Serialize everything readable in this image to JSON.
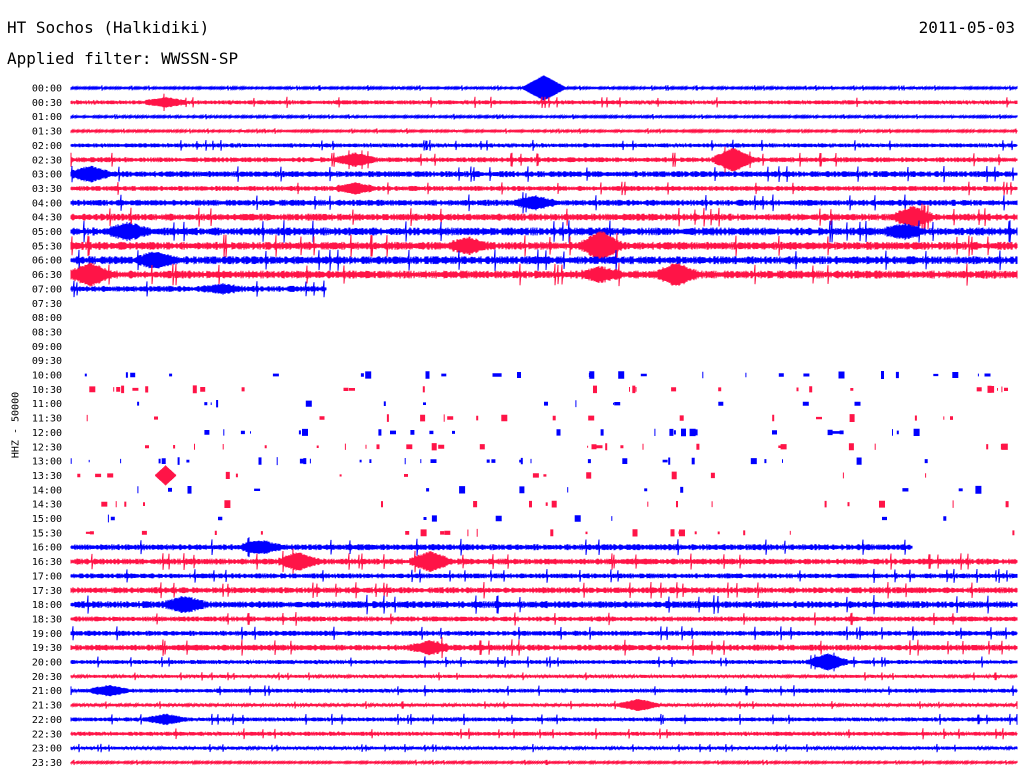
{
  "header": {
    "station": "HT Sochos (Halkidiki)",
    "date": "2011-05-03",
    "filter": "Applied filter: WWSSN-SP"
  },
  "chart_data": {
    "type": "line",
    "title": "HT Sochos (Halkidiki)",
    "ylabel": "HHZ - 50000",
    "colors": {
      "even_rows": "#0000ff",
      "odd_rows": "#ff1447"
    },
    "row_labels": [
      "00:00",
      "00:30",
      "01:00",
      "01:30",
      "02:00",
      "02:30",
      "03:00",
      "03:30",
      "04:00",
      "04:30",
      "05:00",
      "05:30",
      "06:00",
      "06:30",
      "07:00",
      "07:30",
      "08:00",
      "08:30",
      "09:00",
      "09:30",
      "10:00",
      "10:30",
      "11:00",
      "11:30",
      "12:00",
      "12:30",
      "13:00",
      "13:30",
      "14:00",
      "14:30",
      "15:00",
      "15:30",
      "16:00",
      "16:30",
      "17:00",
      "17:30",
      "18:00",
      "18:30",
      "19:00",
      "19:30",
      "20:00",
      "20:30",
      "21:00",
      "21:30",
      "22:00",
      "22:30",
      "23:00",
      "23:30"
    ],
    "series": [
      {
        "label": "00:00",
        "noise": 1,
        "coverage": 1,
        "events": [
          [
            0.5,
            12
          ]
        ]
      },
      {
        "label": "00:30",
        "noise": 2,
        "coverage": 1,
        "events": [
          [
            0.1,
            4
          ]
        ]
      },
      {
        "label": "01:00",
        "noise": 1,
        "coverage": 1,
        "events": []
      },
      {
        "label": "01:30",
        "noise": 1,
        "coverage": 1,
        "events": []
      },
      {
        "label": "02:00",
        "noise": 2,
        "coverage": 1,
        "events": []
      },
      {
        "label": "02:30",
        "noise": 2.5,
        "coverage": 1,
        "events": [
          [
            0.3,
            5
          ],
          [
            0.7,
            10
          ]
        ]
      },
      {
        "label": "03:00",
        "noise": 3,
        "coverage": 1,
        "events": [
          [
            0.02,
            6
          ]
        ]
      },
      {
        "label": "03:30",
        "noise": 2.5,
        "coverage": 1,
        "events": [
          [
            0.3,
            4
          ]
        ]
      },
      {
        "label": "04:00",
        "noise": 3,
        "coverage": 1,
        "events": [
          [
            0.49,
            5
          ]
        ]
      },
      {
        "label": "04:30",
        "noise": 3.5,
        "coverage": 1,
        "events": [
          [
            0.89,
            8
          ]
        ]
      },
      {
        "label": "05:00",
        "noise": 4,
        "coverage": 1,
        "events": [
          [
            0.06,
            6
          ],
          [
            0.88,
            5
          ]
        ]
      },
      {
        "label": "05:30",
        "noise": 4,
        "coverage": 1,
        "events": [
          [
            0.42,
            6
          ],
          [
            0.56,
            12
          ]
        ]
      },
      {
        "label": "06:00",
        "noise": 4,
        "coverage": 1,
        "events": [
          [
            0.09,
            6
          ]
        ]
      },
      {
        "label": "06:30",
        "noise": 4,
        "coverage": 1,
        "events": [
          [
            0.02,
            9
          ],
          [
            0.56,
            5
          ],
          [
            0.64,
            9
          ]
        ]
      },
      {
        "label": "07:00",
        "noise": 3,
        "coverage": 0.27,
        "events": [
          [
            0.16,
            3
          ]
        ]
      },
      {
        "label": "07:30",
        "noise": 0,
        "coverage": 0,
        "events": []
      },
      {
        "label": "08:00",
        "noise": 0,
        "coverage": 0,
        "events": []
      },
      {
        "label": "08:30",
        "noise": 0,
        "coverage": 0,
        "events": []
      },
      {
        "label": "09:00",
        "noise": 0,
        "coverage": 0,
        "events": []
      },
      {
        "label": "09:30",
        "noise": 0,
        "coverage": 0,
        "events": []
      },
      {
        "label": "10:00",
        "noise": 0,
        "coverage": 0,
        "sparse": true,
        "events": []
      },
      {
        "label": "10:30",
        "noise": 0,
        "coverage": 0,
        "sparse": true,
        "events": []
      },
      {
        "label": "11:00",
        "noise": 0,
        "coverage": 0,
        "sparse": true,
        "events": []
      },
      {
        "label": "11:30",
        "noise": 0,
        "coverage": 0,
        "sparse": true,
        "events": []
      },
      {
        "label": "12:00",
        "noise": 0,
        "coverage": 0,
        "sparse": true,
        "events": []
      },
      {
        "label": "12:30",
        "noise": 0,
        "coverage": 0,
        "sparse": true,
        "events": []
      },
      {
        "label": "13:00",
        "noise": 0,
        "coverage": 0,
        "sparse": true,
        "events": []
      },
      {
        "label": "13:30",
        "noise": 0,
        "coverage": 0,
        "sparse": true,
        "events": [
          [
            0.1,
            9
          ]
        ]
      },
      {
        "label": "14:00",
        "noise": 0,
        "coverage": 0,
        "sparse": true,
        "events": []
      },
      {
        "label": "14:30",
        "noise": 0,
        "coverage": 0,
        "sparse": true,
        "events": []
      },
      {
        "label": "15:00",
        "noise": 0,
        "coverage": 0,
        "sparse": true,
        "events": []
      },
      {
        "label": "15:30",
        "noise": 0,
        "coverage": 0,
        "sparse": true,
        "events": []
      },
      {
        "label": "16:00",
        "noise": 3,
        "coverage": 0.89,
        "events": [
          [
            0.2,
            5
          ]
        ]
      },
      {
        "label": "16:30",
        "noise": 3,
        "coverage": 1,
        "events": [
          [
            0.24,
            7
          ],
          [
            0.38,
            8
          ]
        ]
      },
      {
        "label": "17:00",
        "noise": 2.5,
        "coverage": 1,
        "events": []
      },
      {
        "label": "17:30",
        "noise": 3,
        "coverage": 1,
        "events": []
      },
      {
        "label": "18:00",
        "noise": 3.5,
        "coverage": 1,
        "events": [
          [
            0.12,
            6
          ]
        ]
      },
      {
        "label": "18:30",
        "noise": 2.5,
        "coverage": 1,
        "events": []
      },
      {
        "label": "19:00",
        "noise": 2.5,
        "coverage": 1,
        "events": []
      },
      {
        "label": "19:30",
        "noise": 3,
        "coverage": 1,
        "events": [
          [
            0.38,
            5
          ]
        ]
      },
      {
        "label": "20:00",
        "noise": 2,
        "coverage": 1,
        "events": [
          [
            0.8,
            7
          ]
        ]
      },
      {
        "label": "20:30",
        "noise": 1.5,
        "coverage": 1,
        "events": []
      },
      {
        "label": "21:00",
        "noise": 2,
        "coverage": 1,
        "events": [
          [
            0.04,
            4
          ]
        ]
      },
      {
        "label": "21:30",
        "noise": 1.5,
        "coverage": 1,
        "events": [
          [
            0.6,
            5
          ]
        ]
      },
      {
        "label": "22:00",
        "noise": 2,
        "coverage": 1,
        "events": [
          [
            0.1,
            4
          ]
        ]
      },
      {
        "label": "22:30",
        "noise": 2,
        "coverage": 1,
        "events": []
      },
      {
        "label": "23:00",
        "noise": 1.5,
        "coverage": 1,
        "events": []
      },
      {
        "label": "23:30",
        "noise": 1,
        "coverage": 1,
        "events": []
      }
    ]
  }
}
